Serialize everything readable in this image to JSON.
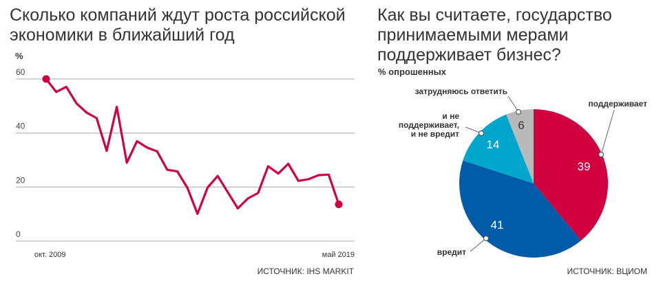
{
  "chart_data": [
    {
      "type": "line",
      "title": "Сколько компаний ждут роста российской экономики в ближайший год",
      "ylabel": "%",
      "ylim": [
        0,
        60
      ],
      "yticks": [
        0,
        20,
        40,
        60
      ],
      "x_labels": {
        "start": "окт. 2009",
        "end": "май 2019"
      },
      "grid": true,
      "color": "#d1003f",
      "values": [
        60,
        55.2,
        57.1,
        51,
        47.6,
        45.5,
        33.4,
        49.7,
        29,
        37,
        34.6,
        33.2,
        26.4,
        25.8,
        19.7,
        10.1,
        19.8,
        24.1,
        18.1,
        12.1,
        15.8,
        17.8,
        27.7,
        25,
        28.6,
        22.3,
        22.9,
        24.4,
        24.6,
        13.6
      ],
      "source": "ИСТОЧНИК: IHS MARKIT"
    },
    {
      "type": "pie",
      "title": "Как вы считаете, государство принимаемыми мерами поддерживает бизнес?",
      "subtitle": "% опрошенных",
      "slices": [
        {
          "label": "поддерживает",
          "value": 39,
          "color": "#d1003f"
        },
        {
          "label": "вредит",
          "value": 41,
          "color": "#005ca9"
        },
        {
          "label": "и не поддерживает, и не вредит",
          "label_lines": [
            "и не",
            "поддерживает,",
            "и не вредит"
          ],
          "value": 14,
          "color": "#00a6cc"
        },
        {
          "label": "затрудняюсь ответить",
          "value": 6,
          "color": "#b9b9b9"
        }
      ],
      "source": "ИСТОЧНИК: ВЦИОМ"
    }
  ]
}
